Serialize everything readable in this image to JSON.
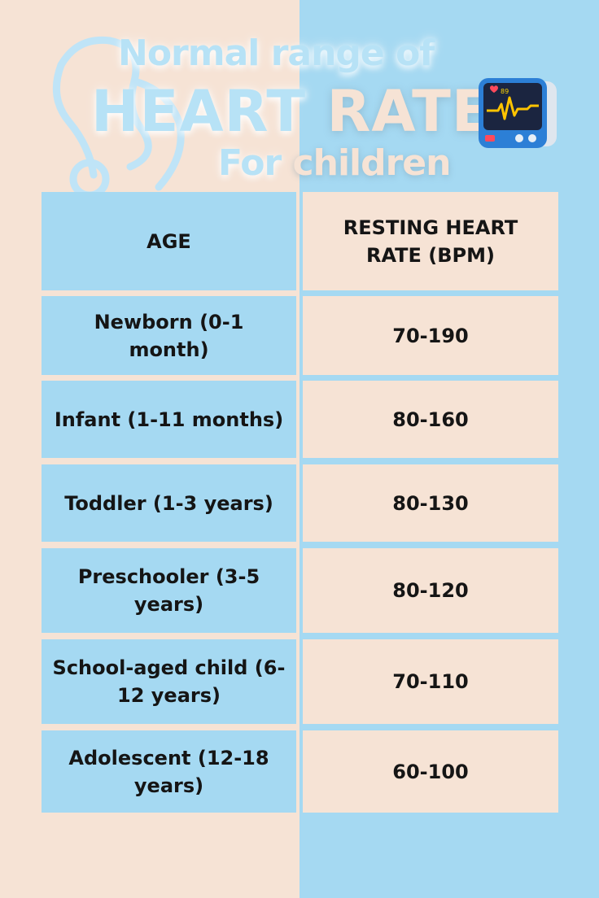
{
  "title": {
    "line1": "Normal range of",
    "line2_a": "HEART",
    "line2_b": "RATE",
    "line3_a": "For",
    "line3_b": "children"
  },
  "monitor": {
    "bpm": "89"
  },
  "table": {
    "headers": [
      "AGE",
      "RESTING HEART RATE (BPM)"
    ],
    "rows": [
      {
        "age": "Newborn (0-1 month)",
        "rate": "70-190"
      },
      {
        "age": "Infant (1-11 months)",
        "rate": "80-160"
      },
      {
        "age": "Toddler (1-3 years)",
        "rate": "80-130"
      },
      {
        "age": "Preschooler (3-5 years)",
        "rate": "80-120"
      },
      {
        "age": "School-aged child (6-12 years)",
        "rate": "70-110"
      },
      {
        "age": "Adolescent (12-18 years)",
        "rate": "60-100"
      }
    ]
  },
  "colors": {
    "peach": "#f6e3d5",
    "sky_blue": "#a5d9f2",
    "text": "#151515"
  }
}
